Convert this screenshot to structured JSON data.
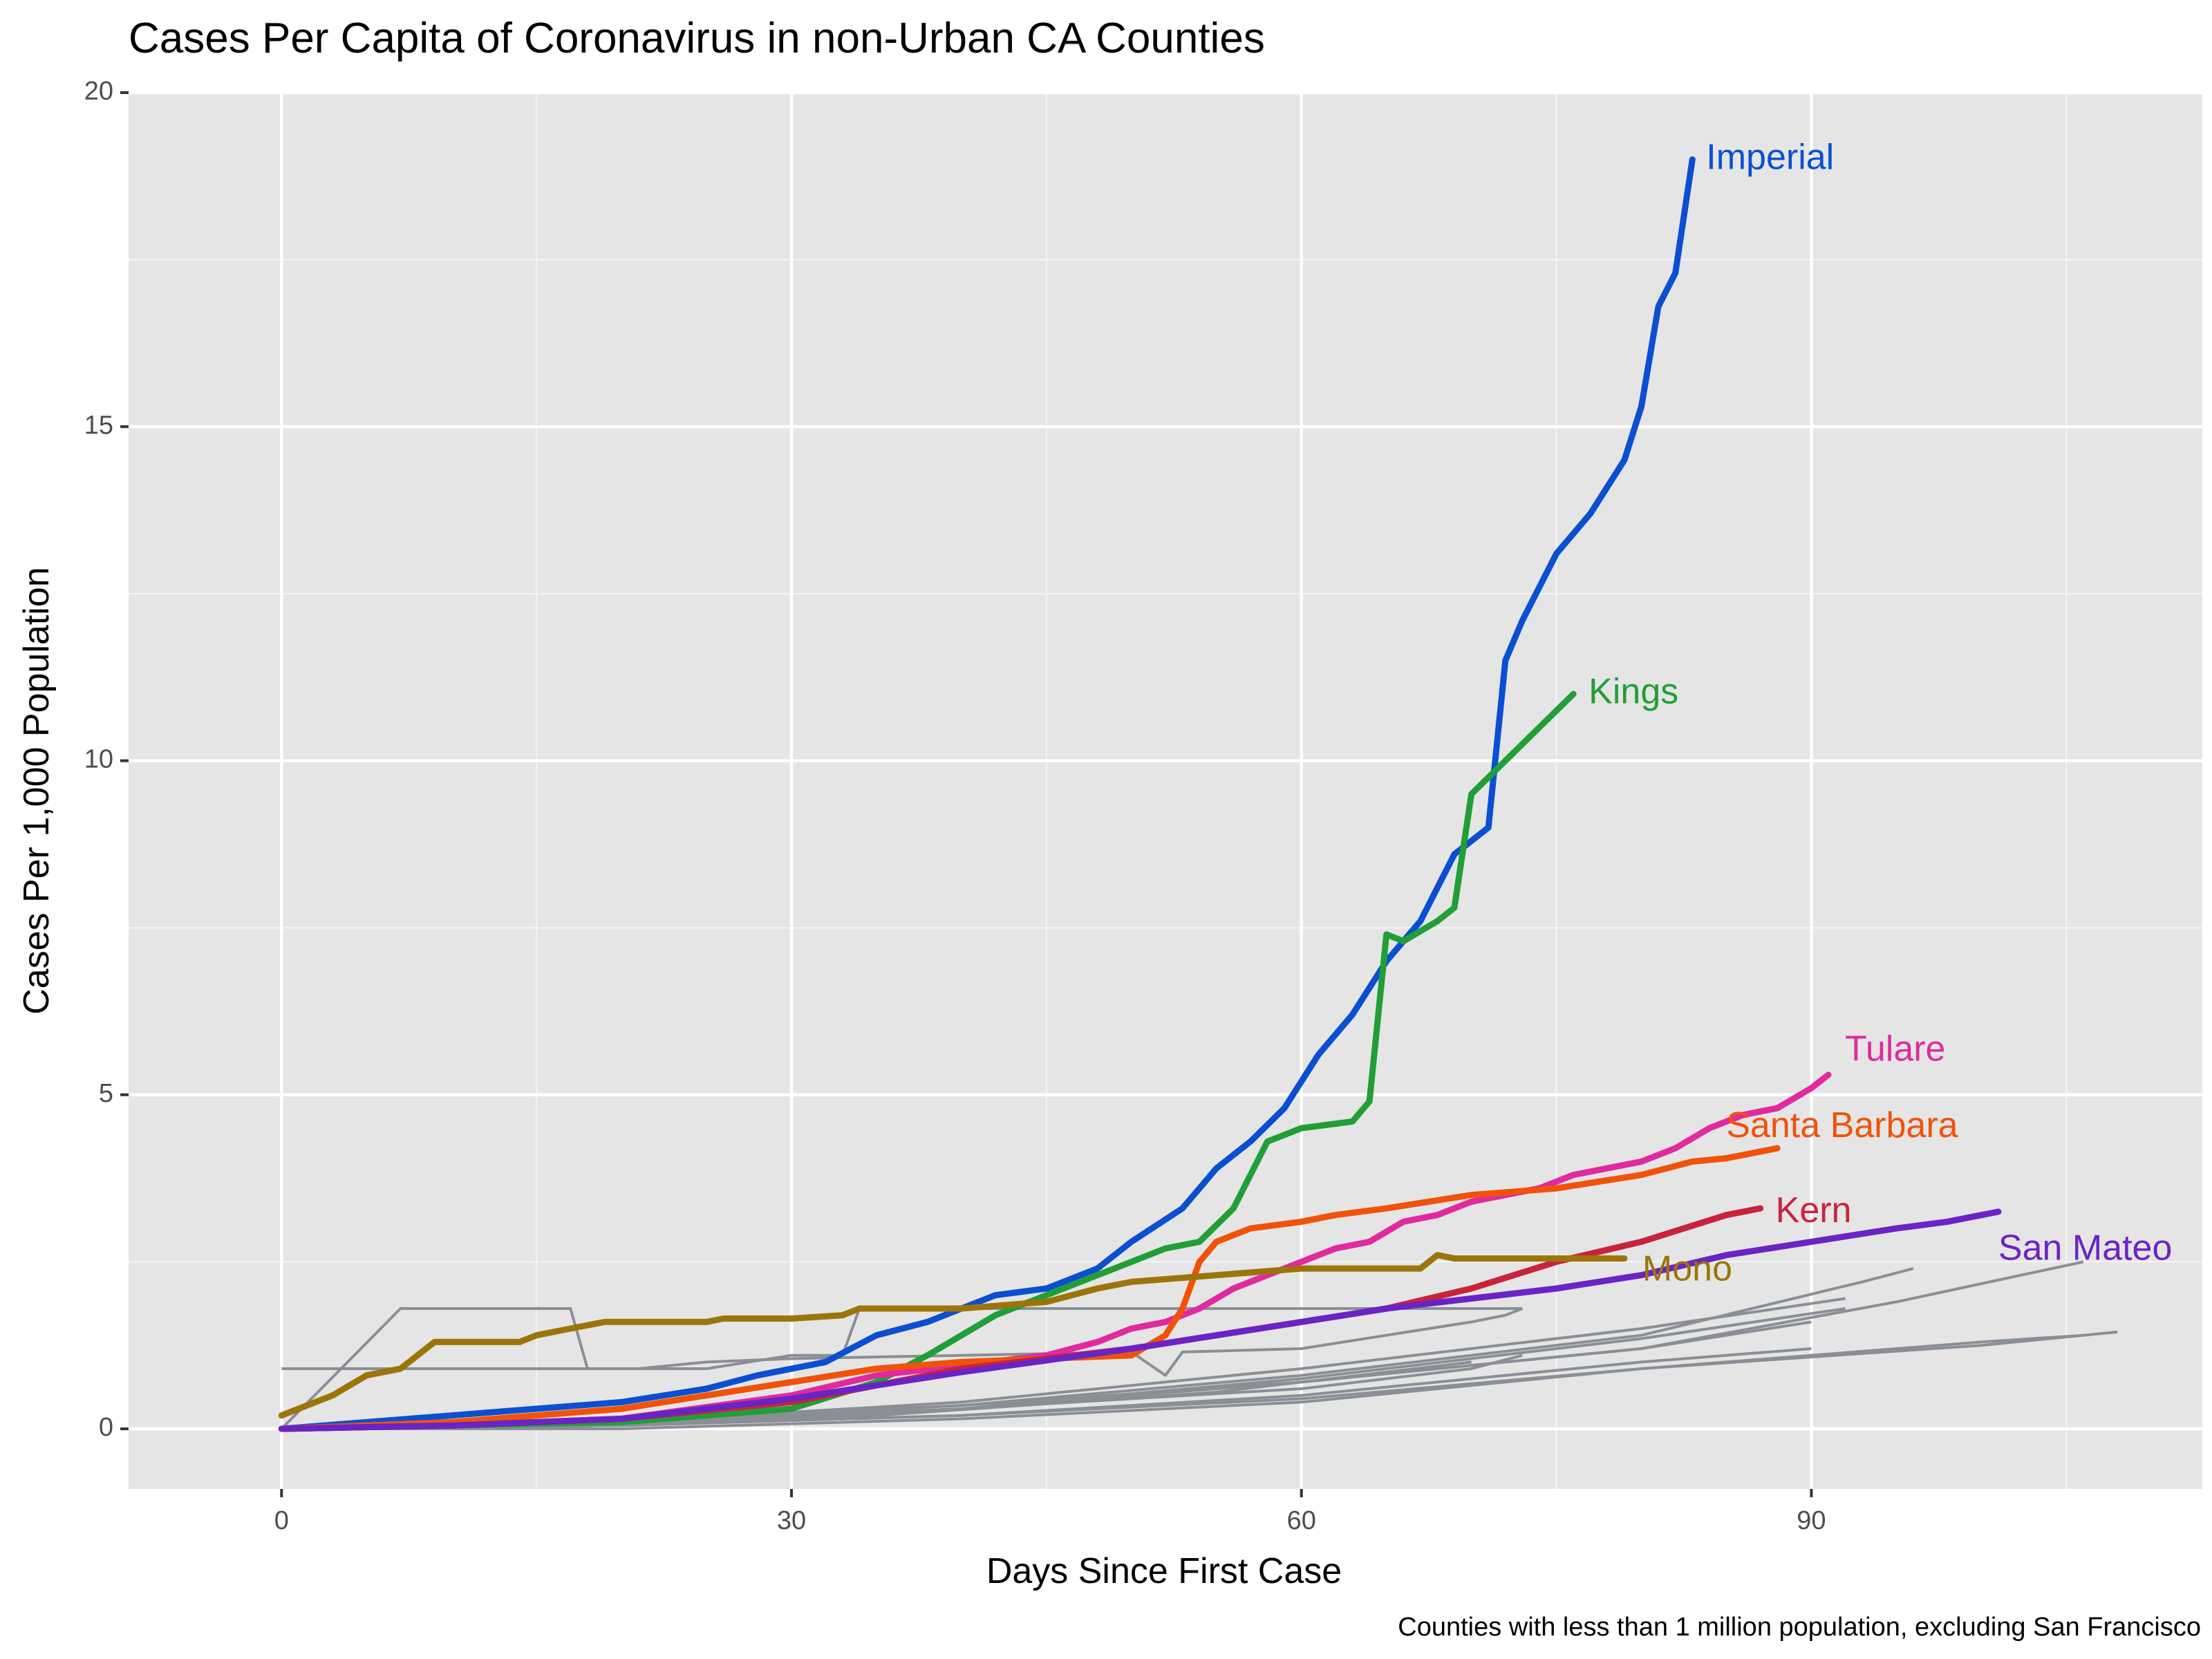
{
  "chart_data": {
    "type": "line",
    "title": "Cases Per Capita of Coronavirus in non-Urban CA Counties",
    "xlabel": "Days Since First Case",
    "ylabel": "Cases Per 1,000 Population",
    "caption": "Counties with less than 1 million population, excluding San Francisco",
    "xlim": [
      -9,
      113
    ],
    "ylim": [
      -0.9,
      20.0
    ],
    "x_ticks": [
      0,
      30,
      60,
      90
    ],
    "y_ticks": [
      0,
      5,
      10,
      15,
      20
    ],
    "x_minor": [
      15,
      45,
      75,
      105
    ],
    "y_minor": [
      2.5,
      7.5,
      12.5,
      17.5
    ],
    "grid": true,
    "legend": "none",
    "highlighted_series": [
      {
        "name": "Imperial",
        "color": "#0b4fd1",
        "x": [
          0,
          5,
          10,
          15,
          20,
          25,
          28,
          32,
          35,
          38,
          40,
          42,
          45,
          48,
          50,
          53,
          55,
          57,
          59,
          61,
          63,
          65,
          67,
          69,
          71,
          72,
          73,
          75,
          77,
          79,
          80,
          81,
          82,
          83
        ],
        "y": [
          0.0,
          0.1,
          0.2,
          0.3,
          0.4,
          0.6,
          0.8,
          1.0,
          1.4,
          1.6,
          1.8,
          2.0,
          2.1,
          2.4,
          2.8,
          3.3,
          3.9,
          4.3,
          4.8,
          5.6,
          6.2,
          7.0,
          7.6,
          8.6,
          9.0,
          11.5,
          12.1,
          13.1,
          13.7,
          14.5,
          15.3,
          16.8,
          17.3,
          19.0
        ]
      },
      {
        "name": "Kings",
        "color": "#229e38",
        "x": [
          0,
          10,
          20,
          30,
          35,
          38,
          40,
          42,
          45,
          48,
          50,
          52,
          54,
          56,
          58,
          60,
          63,
          64,
          65,
          66,
          68,
          69,
          70,
          72,
          74,
          76
        ],
        "y": [
          0.0,
          0.05,
          0.1,
          0.3,
          0.7,
          1.1,
          1.4,
          1.7,
          2.0,
          2.3,
          2.5,
          2.7,
          2.8,
          3.3,
          4.3,
          4.5,
          4.6,
          4.9,
          7.4,
          7.3,
          7.6,
          7.8,
          9.5,
          10.0,
          10.5,
          11.0
        ]
      },
      {
        "name": "Tulare",
        "color": "#e02a9d",
        "x": [
          0,
          10,
          20,
          30,
          35,
          40,
          45,
          48,
          50,
          52,
          54,
          56,
          58,
          60,
          62,
          64,
          66,
          68,
          70,
          72,
          74,
          76,
          78,
          80,
          82,
          84,
          86,
          88,
          90,
          91
        ],
        "y": [
          0.0,
          0.05,
          0.15,
          0.5,
          0.8,
          0.95,
          1.1,
          1.3,
          1.5,
          1.6,
          1.8,
          2.1,
          2.3,
          2.5,
          2.7,
          2.8,
          3.1,
          3.2,
          3.4,
          3.5,
          3.6,
          3.8,
          3.9,
          4.0,
          4.2,
          4.5,
          4.7,
          4.8,
          5.1,
          5.3
        ]
      },
      {
        "name": "Santa Barbara",
        "color": "#f0520a",
        "x": [
          0,
          10,
          20,
          30,
          35,
          40,
          45,
          50,
          52,
          53,
          54,
          55,
          57,
          60,
          62,
          65,
          70,
          75,
          80,
          83,
          85,
          88
        ],
        "y": [
          0.0,
          0.1,
          0.3,
          0.7,
          0.9,
          1.0,
          1.05,
          1.1,
          1.4,
          1.8,
          2.5,
          2.8,
          3.0,
          3.1,
          3.2,
          3.3,
          3.5,
          3.6,
          3.8,
          4.0,
          4.05,
          4.2
        ]
      },
      {
        "name": "Kern",
        "color": "#c8233b",
        "x": [
          0,
          10,
          20,
          30,
          40,
          50,
          55,
          60,
          65,
          70,
          75,
          80,
          85,
          87
        ],
        "y": [
          0.0,
          0.05,
          0.15,
          0.4,
          0.9,
          1.2,
          1.4,
          1.6,
          1.8,
          2.1,
          2.5,
          2.8,
          3.2,
          3.3
        ]
      },
      {
        "name": "San Mateo",
        "color": "#6a24c4",
        "x": [
          0,
          10,
          20,
          30,
          40,
          50,
          55,
          60,
          65,
          70,
          75,
          80,
          85,
          90,
          95,
          98,
          101
        ],
        "y": [
          0.0,
          0.05,
          0.15,
          0.45,
          0.85,
          1.2,
          1.4,
          1.6,
          1.8,
          1.95,
          2.1,
          2.3,
          2.6,
          2.8,
          3.0,
          3.1,
          3.25
        ]
      },
      {
        "name": "Mono",
        "color": "#9c750a",
        "x": [
          0,
          3,
          5,
          7,
          8,
          9,
          10,
          14,
          15,
          17,
          18,
          19,
          25,
          26,
          30,
          33,
          34,
          40,
          45,
          48,
          50,
          60,
          62,
          67,
          68,
          69,
          70,
          75,
          79
        ],
        "y": [
          0.2,
          0.5,
          0.8,
          0.9,
          1.1,
          1.3,
          1.3,
          1.3,
          1.4,
          1.5,
          1.55,
          1.6,
          1.6,
          1.65,
          1.65,
          1.7,
          1.8,
          1.8,
          1.9,
          2.1,
          2.2,
          2.4,
          2.4,
          2.4,
          2.6,
          2.55,
          2.55,
          2.55,
          2.55
        ]
      }
    ],
    "other_series_color": "#8a8f96",
    "other_series": [
      {
        "x": [
          0,
          7,
          17,
          18,
          20,
          21,
          25,
          30,
          40,
          50,
          52,
          53,
          60,
          70,
          72,
          73
        ],
        "y": [
          0.9,
          0.9,
          0.9,
          0.9,
          0.9,
          0.9,
          1.0,
          1.05,
          1.1,
          1.15,
          0.8,
          1.15,
          1.2,
          1.6,
          1.7,
          1.8
        ]
      },
      {
        "x": [
          0,
          7,
          17,
          18,
          25,
          30,
          33,
          34,
          40,
          50,
          60,
          70,
          73
        ],
        "y": [
          0.0,
          1.8,
          1.8,
          0.9,
          0.9,
          1.1,
          1.1,
          1.8,
          1.8,
          1.8,
          1.8,
          1.8,
          1.8
        ]
      },
      {
        "x": [
          0,
          20,
          40,
          60,
          80,
          93,
          96
        ],
        "y": [
          0.0,
          0.1,
          0.35,
          0.8,
          1.4,
          2.2,
          2.4
        ]
      },
      {
        "x": [
          0,
          20,
          40,
          60,
          80,
          95,
          106
        ],
        "y": [
          0.0,
          0.05,
          0.3,
          0.7,
          1.2,
          1.9,
          2.5
        ]
      },
      {
        "x": [
          0,
          20,
          40,
          60,
          80,
          92
        ],
        "y": [
          0.0,
          0.1,
          0.4,
          0.9,
          1.5,
          1.95
        ]
      },
      {
        "x": [
          0,
          20,
          40,
          60,
          80,
          92
        ],
        "y": [
          0.0,
          0.05,
          0.3,
          0.75,
          1.35,
          1.8
        ]
      },
      {
        "x": [
          0,
          20,
          40,
          60,
          80,
          90
        ],
        "y": [
          0.0,
          0.1,
          0.35,
          0.7,
          1.2,
          1.6
        ]
      },
      {
        "x": [
          0,
          20,
          40,
          60,
          80,
          100,
          108
        ],
        "y": [
          0.0,
          0.05,
          0.2,
          0.45,
          0.9,
          1.25,
          1.45
        ]
      },
      {
        "x": [
          0,
          20,
          40,
          60,
          80,
          100,
          106
        ],
        "y": [
          0.0,
          0.0,
          0.15,
          0.4,
          0.9,
          1.3,
          1.4
        ]
      },
      {
        "x": [
          0,
          20,
          40,
          60,
          70,
          73
        ],
        "y": [
          0.0,
          0.1,
          0.3,
          0.6,
          0.9,
          1.1
        ]
      },
      {
        "x": [
          0,
          20,
          40,
          60,
          80,
          90
        ],
        "y": [
          0.0,
          0.05,
          0.2,
          0.5,
          1.0,
          1.2
        ]
      },
      {
        "x": [
          0,
          15,
          35,
          55,
          70
        ],
        "y": [
          0.0,
          0.05,
          0.2,
          0.55,
          1.0
        ]
      }
    ]
  }
}
